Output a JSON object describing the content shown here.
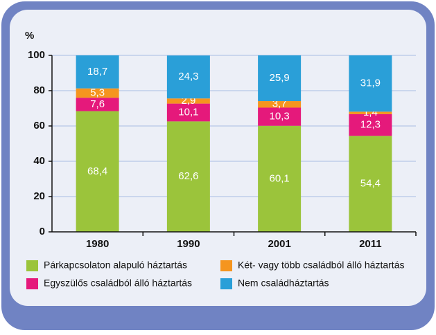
{
  "chart_data": {
    "type": "stacked_bar",
    "y_unit": "%",
    "categories": [
      "1980",
      "1990",
      "2001",
      "2011"
    ],
    "series": [
      {
        "name": "Párkapcsolaton alapuló háztartás",
        "color": "#9bc43b",
        "values": [
          68.4,
          62.6,
          60.1,
          54.4
        ],
        "value_labels": [
          "68,4",
          "62,6",
          "60,1",
          "54,4"
        ]
      },
      {
        "name": "Egyszülős családból álló háztartás",
        "color": "#e5197b",
        "values": [
          7.6,
          10.1,
          10.3,
          12.3
        ],
        "value_labels": [
          "7,6",
          "10,1",
          "10,3",
          "12,3"
        ]
      },
      {
        "name": "Két- vagy több családból álló háztartás",
        "color": "#f5951f",
        "values": [
          5.3,
          2.9,
          3.7,
          1.4
        ],
        "value_labels": [
          "5,3",
          "2,9",
          "3,7",
          "1,4"
        ]
      },
      {
        "name": "Nem családháztartás",
        "color": "#2a9fd8",
        "values": [
          18.7,
          24.3,
          25.9,
          31.9
        ],
        "value_labels": [
          "18,7",
          "24,3",
          "25,9",
          "31,9"
        ]
      }
    ],
    "ylim": [
      0,
      100
    ],
    "yticks": [
      0,
      20,
      40,
      60,
      80,
      100
    ],
    "grid": true
  }
}
